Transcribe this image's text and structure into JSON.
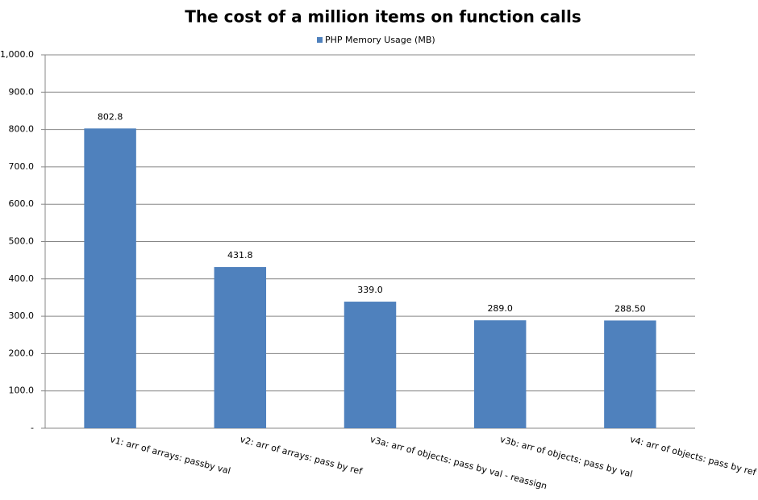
{
  "chart_data": {
    "type": "bar",
    "title": "The cost of a million items on function calls",
    "categories": [
      "v1: arr of arrays: passby val",
      "v2: arr of arrays: pass by ref",
      "v3a: arr of objects: pass by val - reassign",
      "v3b: arr of objects: pass by val",
      "v4: arr of objects: pass by ref"
    ],
    "series": [
      {
        "name": "PHP Memory Usage (MB)",
        "color": "#4f81bd",
        "values": [
          802.8,
          431.8,
          339,
          289,
          288.5
        ],
        "value_labels": [
          "802.8",
          "431.8",
          "339.0",
          "289.0",
          "288.50"
        ]
      }
    ],
    "ylim": [
      0,
      1000
    ],
    "yticks": [
      {
        "value": 0,
        "label": "-"
      },
      {
        "value": 100,
        "label": "100.0"
      },
      {
        "value": 200,
        "label": "200.0"
      },
      {
        "value": 300,
        "label": "300.0"
      },
      {
        "value": 400,
        "label": "400.0"
      },
      {
        "value": 500,
        "label": "500.0"
      },
      {
        "value": 600,
        "label": "600.0"
      },
      {
        "value": 700,
        "label": "700.0"
      },
      {
        "value": 800,
        "label": "800.0"
      },
      {
        "value": 900,
        "label": "900.0"
      },
      {
        "value": 1000,
        "label": "1,000.0"
      }
    ],
    "grid": true,
    "legend": "top"
  }
}
